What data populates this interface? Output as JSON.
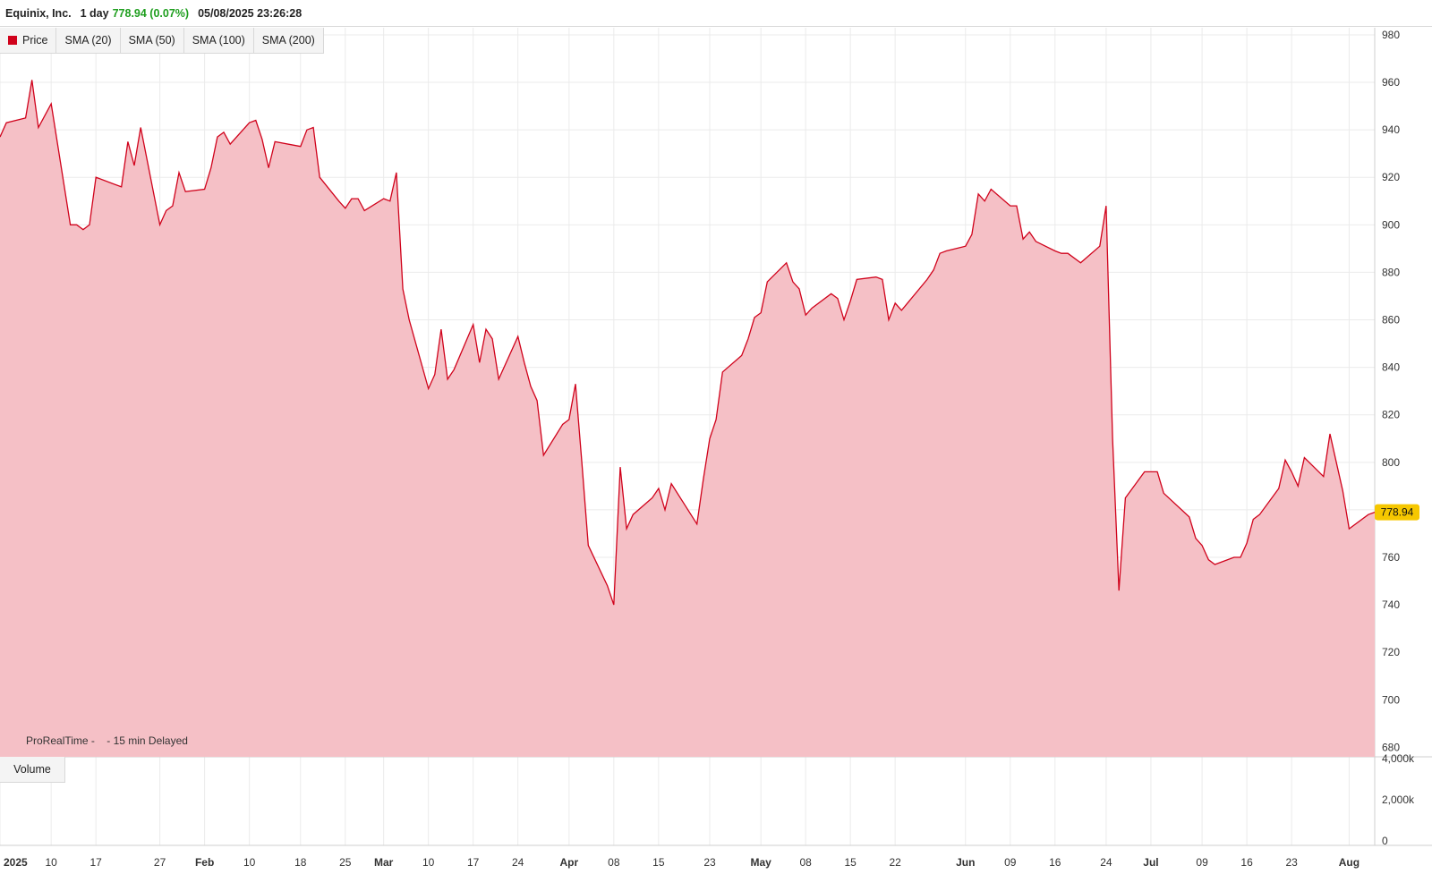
{
  "header": {
    "instrument": "Equinix, Inc.",
    "interval": "1 day",
    "last_change": "778.94 (0.07%)",
    "datetime": "05/08/2025 23:26:28",
    "change_color": "#1e9e1e"
  },
  "legend": {
    "items": [
      "Price",
      "SMA (20)",
      "SMA (50)",
      "SMA (100)",
      "SMA (200)"
    ],
    "price_color": "#d0021b"
  },
  "volume_tab": "Volume",
  "source_note": "ProRealTime -    - 15 min Delayed",
  "last_price_label": "778.94",
  "chart_data": [
    {
      "type": "area",
      "x": [
        "2025-01-02",
        "2025-01-03",
        "2025-01-06",
        "2025-01-07",
        "2025-01-08",
        "2025-01-10",
        "2025-01-13",
        "2025-01-14",
        "2025-01-15",
        "2025-01-16",
        "2025-01-17",
        "2025-01-21",
        "2025-01-22",
        "2025-01-23",
        "2025-01-24",
        "2025-01-27",
        "2025-01-28",
        "2025-01-29",
        "2025-01-30",
        "2025-01-31",
        "2025-02-03",
        "2025-02-04",
        "2025-02-05",
        "2025-02-06",
        "2025-02-07",
        "2025-02-10",
        "2025-02-11",
        "2025-02-12",
        "2025-02-13",
        "2025-02-14",
        "2025-02-18",
        "2025-02-19",
        "2025-02-20",
        "2025-02-21",
        "2025-02-24",
        "2025-02-25",
        "2025-02-26",
        "2025-02-27",
        "2025-02-28",
        "2025-03-03",
        "2025-03-04",
        "2025-03-05",
        "2025-03-06",
        "2025-03-07",
        "2025-03-10",
        "2025-03-11",
        "2025-03-12",
        "2025-03-13",
        "2025-03-14",
        "2025-03-17",
        "2025-03-18",
        "2025-03-19",
        "2025-03-20",
        "2025-03-21",
        "2025-03-24",
        "2025-03-25",
        "2025-03-26",
        "2025-03-27",
        "2025-03-28",
        "2025-03-31",
        "2025-04-01",
        "2025-04-02",
        "2025-04-03",
        "2025-04-04",
        "2025-04-07",
        "2025-04-08",
        "2025-04-09",
        "2025-04-10",
        "2025-04-11",
        "2025-04-14",
        "2025-04-15",
        "2025-04-16",
        "2025-04-17",
        "2025-04-21",
        "2025-04-22",
        "2025-04-23",
        "2025-04-24",
        "2025-04-25",
        "2025-04-28",
        "2025-04-29",
        "2025-04-30",
        "2025-05-01",
        "2025-05-02",
        "2025-05-05",
        "2025-05-06",
        "2025-05-07",
        "2025-05-08",
        "2025-05-09",
        "2025-05-12",
        "2025-05-13",
        "2025-05-14",
        "2025-05-15",
        "2025-05-16",
        "2025-05-19",
        "2025-05-20",
        "2025-05-21",
        "2025-05-22",
        "2025-05-23",
        "2025-05-27",
        "2025-05-28",
        "2025-05-29",
        "2025-05-30",
        "2025-06-02",
        "2025-06-03",
        "2025-06-04",
        "2025-06-05",
        "2025-06-06",
        "2025-06-09",
        "2025-06-10",
        "2025-06-11",
        "2025-06-12",
        "2025-06-13",
        "2025-06-16",
        "2025-06-17",
        "2025-06-18",
        "2025-06-20",
        "2025-06-23",
        "2025-06-24",
        "2025-06-25",
        "2025-06-26",
        "2025-06-27",
        "2025-06-30",
        "2025-07-01",
        "2025-07-02",
        "2025-07-03",
        "2025-07-07",
        "2025-07-08",
        "2025-07-09",
        "2025-07-10",
        "2025-07-11",
        "2025-07-14",
        "2025-07-15",
        "2025-07-16",
        "2025-07-17",
        "2025-07-18",
        "2025-07-21",
        "2025-07-22",
        "2025-07-23",
        "2025-07-24",
        "2025-07-25",
        "2025-07-28",
        "2025-07-29",
        "2025-07-30",
        "2025-07-31",
        "2025-08-01",
        "2025-08-04",
        "2025-08-05"
      ],
      "values": [
        937,
        943,
        945,
        961,
        941,
        951,
        900,
        900,
        898,
        900,
        920,
        916,
        935,
        925,
        941,
        900,
        906,
        908,
        922,
        914,
        915,
        924,
        937,
        939,
        934,
        943,
        944,
        936,
        924,
        935,
        933,
        940,
        941,
        920,
        910,
        907,
        911,
        911,
        906,
        911,
        910,
        922,
        873,
        860,
        831,
        837,
        856,
        835,
        839,
        858,
        842,
        856,
        852,
        835,
        853,
        842,
        832,
        826,
        803,
        816,
        818,
        833,
        800,
        765,
        748,
        740,
        798,
        772,
        778,
        785,
        789,
        780,
        791,
        774,
        793,
        810,
        818,
        838,
        845,
        852,
        861,
        863,
        876,
        884,
        876,
        873,
        862,
        865,
        871,
        869,
        860,
        868,
        877,
        878,
        877,
        860,
        867,
        864,
        877,
        881,
        888,
        889,
        891,
        896,
        913,
        910,
        915,
        908,
        908,
        894,
        897,
        893,
        889,
        888,
        888,
        884,
        891,
        908,
        810,
        746,
        785,
        796,
        796,
        796,
        787,
        777,
        768,
        765,
        759,
        757,
        760,
        760,
        766,
        776,
        778,
        789,
        801,
        796,
        790,
        802,
        794,
        812,
        800,
        788,
        772,
        778,
        779
      ],
      "ylim": [
        676,
        983
      ],
      "yticks": [
        680,
        700,
        720,
        740,
        760,
        780,
        800,
        820,
        840,
        860,
        880,
        900,
        920,
        940,
        960,
        980
      ],
      "xticks": [
        {
          "label": "2025",
          "date": "2025-01-02",
          "major": true
        },
        {
          "label": "10",
          "date": "2025-01-10"
        },
        {
          "label": "17",
          "date": "2025-01-17"
        },
        {
          "label": "27",
          "date": "2025-01-27"
        },
        {
          "label": "Feb",
          "date": "2025-02-03",
          "major": true
        },
        {
          "label": "10",
          "date": "2025-02-10"
        },
        {
          "label": "18",
          "date": "2025-02-18"
        },
        {
          "label": "25",
          "date": "2025-02-25"
        },
        {
          "label": "Mar",
          "date": "2025-03-03",
          "major": true
        },
        {
          "label": "10",
          "date": "2025-03-10"
        },
        {
          "label": "17",
          "date": "2025-03-17"
        },
        {
          "label": "24",
          "date": "2025-03-24"
        },
        {
          "label": "Apr",
          "date": "2025-04-01",
          "major": true
        },
        {
          "label": "08",
          "date": "2025-04-08"
        },
        {
          "label": "15",
          "date": "2025-04-15"
        },
        {
          "label": "23",
          "date": "2025-04-23"
        },
        {
          "label": "May",
          "date": "2025-05-01",
          "major": true
        },
        {
          "label": "08",
          "date": "2025-05-08"
        },
        {
          "label": "15",
          "date": "2025-05-15"
        },
        {
          "label": "22",
          "date": "2025-05-22"
        },
        {
          "label": "Jun",
          "date": "2025-06-02",
          "major": true
        },
        {
          "label": "09",
          "date": "2025-06-09"
        },
        {
          "label": "16",
          "date": "2025-06-16"
        },
        {
          "label": "24",
          "date": "2025-06-24"
        },
        {
          "label": "Jul",
          "date": "2025-07-01",
          "major": true
        },
        {
          "label": "09",
          "date": "2025-07-09"
        },
        {
          "label": "16",
          "date": "2025-07-16"
        },
        {
          "label": "23",
          "date": "2025-07-23"
        },
        {
          "label": "Aug",
          "date": "2025-08-01",
          "major": true
        }
      ],
      "line_color": "#d0021b",
      "fill_color": "#f5c0c6",
      "grid": true
    },
    {
      "type": "bar",
      "yticks": [
        "0",
        "2,000k",
        "4,000k"
      ]
    }
  ]
}
